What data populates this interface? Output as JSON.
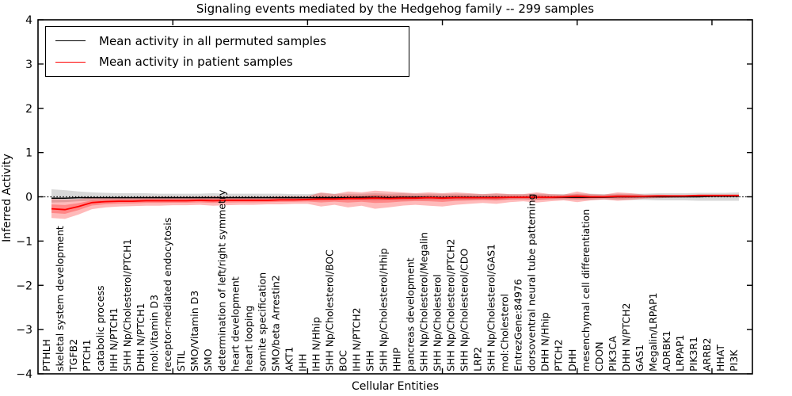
{
  "title": "Signaling events mediated by the Hedgehog family -- 299 samples",
  "legend": {
    "items": [
      {
        "label": "Mean activity in all permuted samples",
        "color": "#000000"
      },
      {
        "label": "Mean activity in patient samples",
        "color": "#ff0000"
      }
    ]
  },
  "chart_data": {
    "type": "line",
    "title": "Signaling events mediated by the Hedgehog family -- 299 samples",
    "xlabel": "Cellular Entities",
    "ylabel": "Inferred Activity",
    "ylim": [
      -4,
      4
    ],
    "xlim": [
      0,
      53
    ],
    "yticks": [
      -4,
      -3,
      -2,
      -1,
      0,
      1,
      2,
      3,
      4
    ],
    "ytick_labels": [
      "−4",
      "−3",
      "−2",
      "−1",
      "0",
      "1",
      "2",
      "3",
      "4"
    ],
    "x_major_ticks": [
      10,
      20,
      30,
      40,
      50
    ],
    "grid": false,
    "zero_line": true,
    "legend_position": "upper left",
    "colors": {
      "permuted_line": "#000000",
      "permuted_band": "#999999",
      "patient_line": "#ff0000",
      "patient_band": "#ff0000"
    },
    "categories": [
      "PTHLH",
      "skeletal system development",
      "TGFB2",
      "PTCH1",
      "catabolic process",
      "IHH N/PTCH1",
      "SHH Np/Cholesterol/PTCH1",
      "DHH N/PTCH1",
      "mol:Vitamin D3",
      "receptor-mediated endocytosis",
      "STIL",
      "SMO/Vitamin D3",
      "SMO",
      "determination of left/right symmetry",
      "heart development",
      "heart looping",
      "somite specification",
      "SMO/beta Arrestin2",
      "AKT1",
      "IHH",
      "IHH N/Hhip",
      "SHH Np/Cholesterol/BOC",
      "BOC",
      "IHH N/PTCH2",
      "SHH",
      "SHH Np/Cholesterol/Hhip",
      "HHIP",
      "pancreas development",
      "SHH Np/Cholesterol/Megalin",
      "SHH Np/Cholesterol",
      "SHH Np/Cholesterol/PTCH2",
      "SHH Np/Cholesterol/CDO",
      "LRP2",
      "SHH Np/Cholesterol/GAS1",
      "mol:Cholesterol",
      "EntrezGene:84976",
      "dorsoventral neural tube patterning",
      "DHH N/Hhip",
      "PTCH2",
      "DHH",
      "mesenchymal cell differentiation",
      "CDON",
      "PIK3CA",
      "DHH N/PTCH2",
      "GAS1",
      "Megalin/LRPAP1",
      "ADRBK1",
      "LRPAP1",
      "PIK3R1",
      "ARRB2",
      "HHAT",
      "PI3K"
    ],
    "series": [
      {
        "name": "Mean activity in all permuted samples",
        "color": "#000000",
        "values": [
          -0.03,
          -0.03,
          -0.02,
          -0.02,
          -0.02,
          -0.02,
          -0.02,
          -0.02,
          -0.02,
          -0.02,
          -0.02,
          -0.02,
          -0.02,
          -0.02,
          -0.02,
          -0.02,
          -0.02,
          -0.02,
          -0.02,
          -0.02,
          -0.02,
          -0.02,
          -0.02,
          -0.01,
          -0.01,
          -0.02,
          -0.01,
          -0.01,
          -0.01,
          -0.02,
          -0.01,
          -0.01,
          -0.01,
          -0.01,
          -0.01,
          -0.01,
          -0.01,
          -0.01,
          -0.01,
          -0.01,
          -0.01,
          -0.01,
          0.0,
          0.0,
          0.0,
          0.0,
          0.0,
          0.0,
          0.0,
          0.01,
          0.01,
          0.01
        ],
        "band_lo": [
          -0.13,
          -0.12,
          -0.1,
          -0.09,
          -0.08,
          -0.08,
          -0.08,
          -0.08,
          -0.07,
          -0.07,
          -0.07,
          -0.07,
          -0.08,
          -0.07,
          -0.07,
          -0.07,
          -0.07,
          -0.07,
          -0.06,
          -0.06,
          -0.08,
          -0.07,
          -0.07,
          -0.07,
          -0.08,
          -0.07,
          -0.08,
          -0.07,
          -0.07,
          -0.07,
          -0.07,
          -0.07,
          -0.06,
          -0.07,
          -0.06,
          -0.06,
          -0.07,
          -0.06,
          -0.06,
          -0.07,
          -0.07,
          -0.06,
          -0.07,
          -0.07,
          -0.07,
          -0.08,
          -0.08,
          -0.08,
          -0.09,
          -0.09,
          -0.09,
          -0.09
        ],
        "band_hi": [
          0.17,
          0.15,
          0.12,
          0.1,
          0.09,
          0.08,
          0.08,
          0.08,
          0.07,
          0.07,
          0.07,
          0.07,
          0.08,
          0.07,
          0.07,
          0.07,
          0.07,
          0.07,
          0.06,
          0.06,
          0.08,
          0.07,
          0.07,
          0.07,
          0.08,
          0.07,
          0.08,
          0.07,
          0.07,
          0.07,
          0.07,
          0.07,
          0.06,
          0.07,
          0.06,
          0.06,
          0.07,
          0.06,
          0.06,
          0.07,
          0.07,
          0.06,
          0.07,
          0.07,
          0.07,
          0.08,
          0.08,
          0.08,
          0.09,
          0.09,
          0.09,
          0.1
        ]
      },
      {
        "name": "Mean activity in patient samples",
        "color": "#ff0000",
        "values": [
          -0.27,
          -0.29,
          -0.22,
          -0.13,
          -0.11,
          -0.1,
          -0.1,
          -0.09,
          -0.09,
          -0.09,
          -0.09,
          -0.08,
          -0.09,
          -0.08,
          -0.08,
          -0.08,
          -0.08,
          -0.07,
          -0.07,
          -0.06,
          -0.05,
          -0.05,
          -0.04,
          -0.04,
          -0.03,
          -0.04,
          -0.03,
          -0.03,
          -0.02,
          -0.03,
          -0.02,
          -0.02,
          -0.02,
          -0.02,
          -0.01,
          -0.01,
          -0.01,
          -0.01,
          0.0,
          0.01,
          0.0,
          0.0,
          0.01,
          0.01,
          0.01,
          0.02,
          0.02,
          0.02,
          0.03,
          0.03,
          0.03,
          0.03
        ],
        "band_lo": [
          -0.48,
          -0.5,
          -0.4,
          -0.28,
          -0.24,
          -0.22,
          -0.21,
          -0.2,
          -0.2,
          -0.19,
          -0.19,
          -0.18,
          -0.2,
          -0.19,
          -0.18,
          -0.18,
          -0.17,
          -0.17,
          -0.16,
          -0.16,
          -0.22,
          -0.18,
          -0.24,
          -0.2,
          -0.27,
          -0.24,
          -0.2,
          -0.18,
          -0.2,
          -0.22,
          -0.18,
          -0.16,
          -0.14,
          -0.16,
          -0.12,
          -0.1,
          -0.13,
          -0.1,
          -0.08,
          -0.12,
          -0.08,
          -0.06,
          -0.09,
          -0.07,
          -0.04,
          -0.03,
          -0.02,
          -0.01,
          0.0,
          0.01,
          0.01,
          0.02
        ],
        "band_hi": [
          -0.05,
          -0.06,
          -0.05,
          -0.02,
          -0.01,
          -0.01,
          -0.01,
          0.0,
          0.0,
          0.0,
          0.0,
          0.0,
          0.01,
          0.0,
          0.0,
          0.0,
          0.0,
          0.01,
          0.01,
          0.01,
          0.1,
          0.06,
          0.12,
          0.1,
          0.14,
          0.12,
          0.1,
          0.08,
          0.1,
          0.08,
          0.1,
          0.08,
          0.06,
          0.08,
          0.06,
          0.06,
          0.1,
          0.06,
          0.05,
          0.12,
          0.06,
          0.05,
          0.1,
          0.08,
          0.05,
          0.05,
          0.04,
          0.04,
          0.05,
          0.05,
          0.05,
          0.05
        ],
        "inner_band_factor": 0.45
      }
    ]
  }
}
